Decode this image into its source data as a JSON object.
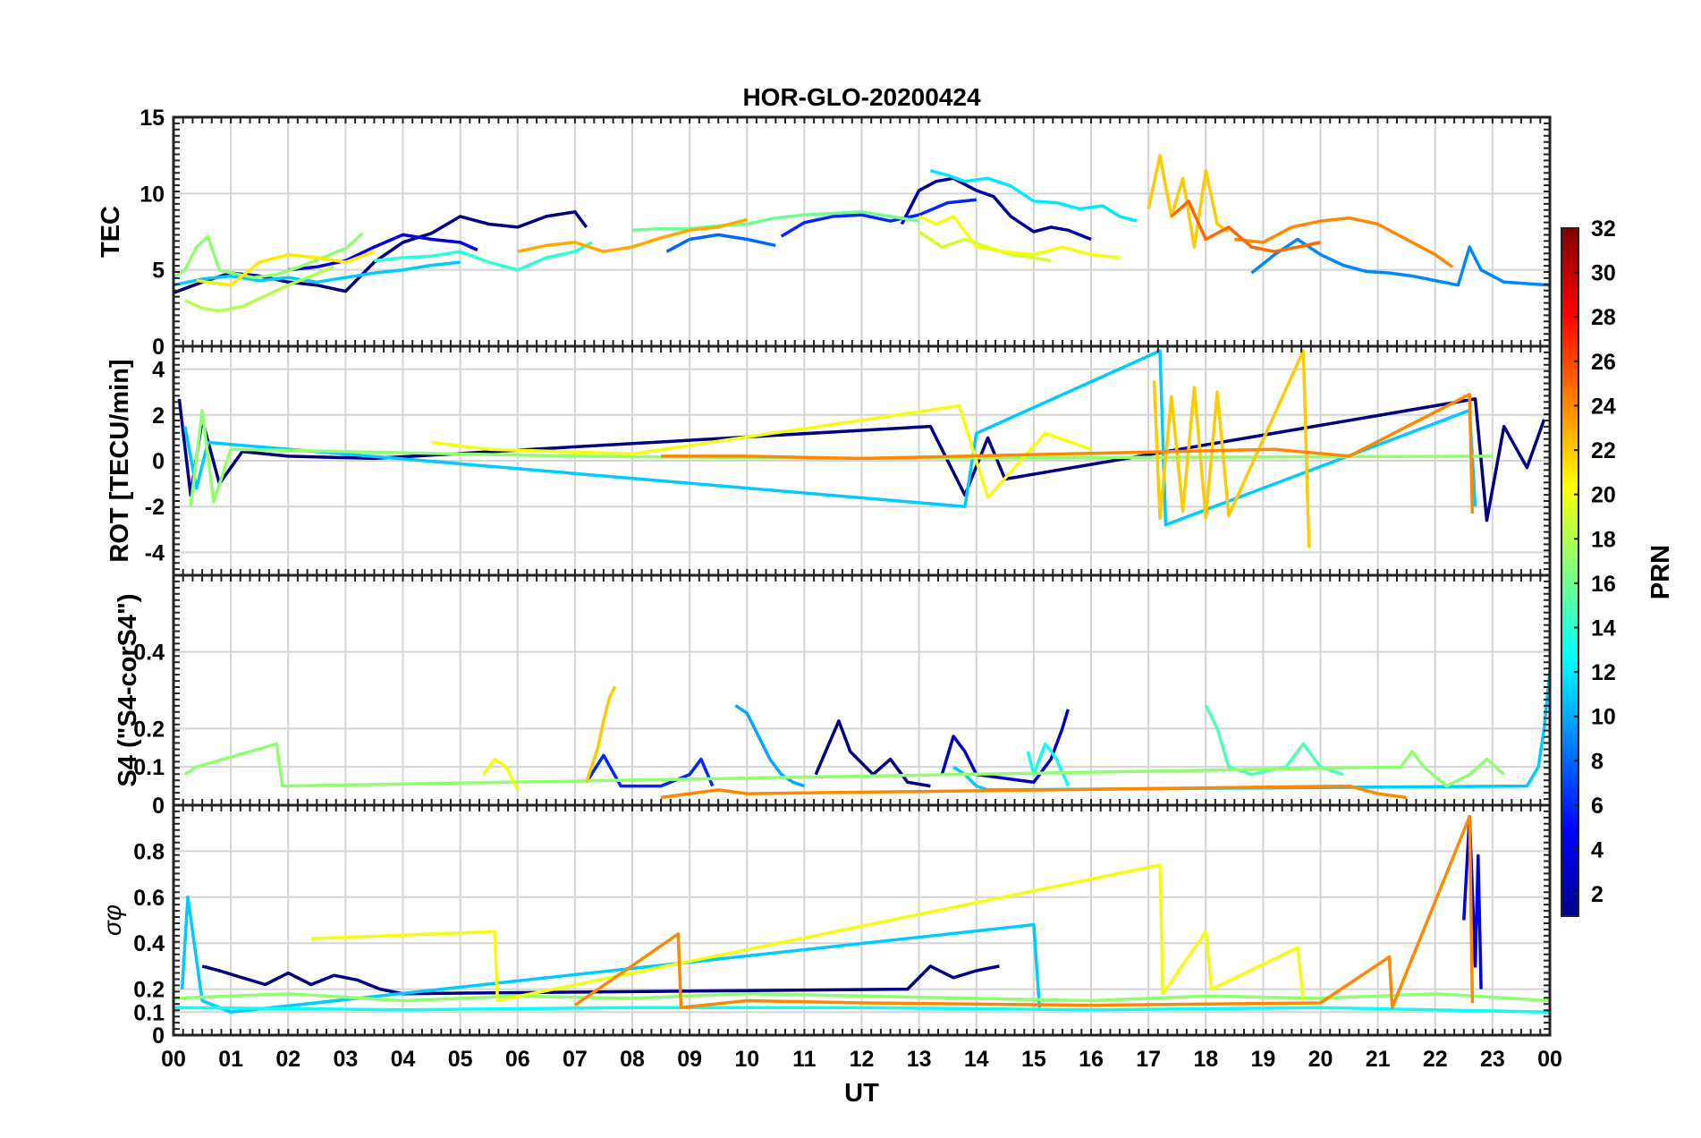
{
  "figure": {
    "title": "HOR-GLO-20200424",
    "xlabel": "UT",
    "x_ticks": [
      "00",
      "01",
      "02",
      "03",
      "04",
      "05",
      "06",
      "07",
      "08",
      "09",
      "10",
      "11",
      "12",
      "13",
      "14",
      "15",
      "16",
      "17",
      "18",
      "19",
      "20",
      "21",
      "22",
      "23",
      "00"
    ]
  },
  "colorbar": {
    "label": "PRN",
    "ticks": [
      "2",
      "4",
      "6",
      "8",
      "10",
      "12",
      "14",
      "16",
      "18",
      "20",
      "22",
      "24",
      "26",
      "28",
      "30",
      "32"
    ],
    "range": [
      1,
      32
    ],
    "colormap": "jet"
  },
  "chart_data": [
    {
      "type": "line",
      "panel": "TEC",
      "ylabel": "TEC",
      "ylim": [
        0,
        15
      ],
      "y_ticks": [
        "0",
        "5",
        "10",
        "15"
      ],
      "x_unit": "UT hours",
      "xlim": [
        0,
        24
      ],
      "grid": true,
      "series": [
        {
          "prn": 1,
          "x": [
            0,
            0.5,
            1,
            1.5,
            2,
            2.5,
            3,
            3.5,
            4,
            4.5,
            5,
            5.5,
            6,
            6.5,
            7,
            7.2
          ],
          "y": [
            3.5,
            4.2,
            4.8,
            4.6,
            4.2,
            4.0,
            3.6,
            5.5,
            6.8,
            7.4,
            8.5,
            8.0,
            7.8,
            8.5,
            8.8,
            7.8
          ]
        },
        {
          "prn": 2,
          "x": [
            12.7,
            13,
            13.3,
            13.6,
            14,
            14.3,
            14.6,
            15,
            15.3,
            15.6,
            16
          ],
          "y": [
            8.0,
            10.2,
            10.8,
            11.0,
            10.2,
            9.8,
            8.5,
            7.5,
            7.8,
            7.6,
            7.0
          ]
        },
        {
          "prn": 4,
          "x": [
            2,
            2.5,
            3,
            3.5,
            4,
            4.5,
            5,
            5.3
          ],
          "y": [
            5.0,
            5.2,
            5.6,
            6.5,
            7.3,
            7.0,
            6.8,
            6.3
          ]
        },
        {
          "prn": 6,
          "x": [
            10.6,
            11,
            11.5,
            12,
            12.5,
            13,
            13.5,
            14
          ],
          "y": [
            7.2,
            8.1,
            8.5,
            8.6,
            8.2,
            8.6,
            9.4,
            9.6
          ]
        },
        {
          "prn": 8,
          "x": [
            8.6,
            9,
            9.5,
            10,
            10.5
          ],
          "y": [
            6.2,
            7.0,
            7.3,
            7.0,
            6.6
          ]
        },
        {
          "prn": 9,
          "x": [
            18.8,
            19.2,
            19.6,
            20,
            20.4,
            20.8,
            21.2,
            21.6,
            22,
            22.4,
            22.6,
            22.8,
            23.2,
            23.6,
            24
          ],
          "y": [
            4.8,
            6.0,
            7.0,
            6.0,
            5.3,
            4.9,
            4.8,
            4.6,
            4.3,
            4.0,
            6.5,
            5.0,
            4.2,
            4.1,
            4.0
          ]
        },
        {
          "prn": 11,
          "x": [
            0,
            0.5,
            1,
            1.5,
            2,
            2.5,
            3,
            3.5,
            4,
            4.5,
            5
          ],
          "y": [
            4.0,
            4.4,
            4.6,
            4.3,
            4.5,
            4.2,
            4.5,
            4.8,
            5.0,
            5.3,
            5.5
          ]
        },
        {
          "prn": 12,
          "x": [
            13.2,
            13.5,
            13.8,
            14.2,
            14.6,
            15,
            15.4,
            15.8,
            16.2,
            16.5,
            16.8
          ],
          "y": [
            11.5,
            11.2,
            10.8,
            11.0,
            10.5,
            9.5,
            9.4,
            9.0,
            9.2,
            8.5,
            8.2
          ]
        },
        {
          "prn": 14,
          "x": [
            3.5,
            4,
            4.5,
            5,
            5.5,
            6,
            6.5,
            7,
            7.3
          ],
          "y": [
            5.6,
            5.8,
            5.9,
            6.2,
            5.5,
            5.0,
            5.8,
            6.2,
            6.8
          ]
        },
        {
          "prn": 16,
          "x": [
            8,
            8.5,
            9,
            9.5,
            10,
            10.5,
            11,
            11.5,
            12,
            12.5,
            13
          ],
          "y": [
            7.6,
            7.7,
            7.7,
            7.9,
            8.0,
            8.4,
            8.6,
            8.7,
            8.8,
            8.5,
            8.2
          ]
        },
        {
          "prn": 17,
          "x": [
            0,
            0.2,
            0.4,
            0.6,
            0.8,
            1,
            1.4,
            1.8,
            2.2,
            2.6,
            3,
            3.3
          ],
          "y": [
            4.5,
            5.0,
            6.5,
            7.2,
            5.0,
            4.8,
            4.5,
            4.7,
            5.2,
            5.8,
            6.4,
            7.4
          ]
        },
        {
          "prn": 18,
          "x": [
            0.2,
            0.5,
            0.8,
            1.2,
            1.6,
            2,
            2.4,
            2.8
          ],
          "y": [
            3.0,
            2.5,
            2.3,
            2.6,
            3.3,
            4.0,
            4.6,
            5.2
          ]
        },
        {
          "prn": 19,
          "x": [
            13,
            13.4,
            13.8,
            14.2,
            14.6,
            15,
            15.3
          ],
          "y": [
            7.5,
            6.5,
            7.0,
            6.5,
            6.0,
            5.8,
            5.6
          ]
        },
        {
          "prn": 20,
          "x": [
            13,
            13.3,
            13.6,
            14,
            14.5,
            15,
            15.5,
            16,
            16.5
          ],
          "y": [
            8.5,
            8.0,
            8.5,
            6.5,
            6.2,
            6.0,
            6.5,
            6.0,
            5.8
          ]
        },
        {
          "prn": 21,
          "x": [
            0.4,
            1,
            1.5,
            2,
            2.5,
            3,
            3.5
          ],
          "y": [
            4.3,
            4.0,
            5.5,
            6.0,
            5.8,
            5.5,
            6.2
          ]
        },
        {
          "prn": 22,
          "x": [
            17,
            17.2,
            17.4,
            17.6,
            17.8,
            18,
            18.2,
            18.4
          ],
          "y": [
            9.0,
            12.5,
            8.5,
            11.0,
            6.5,
            11.5,
            8.0,
            7.5
          ]
        },
        {
          "prn": 23,
          "x": [
            6,
            6.5,
            7,
            7.5,
            8,
            8.5,
            9,
            9.5,
            10
          ],
          "y": [
            6.2,
            6.6,
            6.8,
            6.2,
            6.5,
            7.1,
            7.6,
            7.8,
            8.3
          ]
        },
        {
          "prn": 24,
          "x": [
            18.5,
            19,
            19.5,
            20,
            20.5,
            21,
            21.5,
            22,
            22.3
          ],
          "y": [
            7.0,
            6.8,
            7.8,
            8.2,
            8.4,
            8.0,
            7.0,
            6.0,
            5.2
          ]
        },
        {
          "prn": 25,
          "x": [
            17.4,
            17.7,
            18,
            18.4,
            18.8,
            19.2,
            19.6,
            20
          ],
          "y": [
            8.5,
            9.5,
            7.0,
            7.8,
            6.5,
            6.2,
            6.5,
            6.8
          ]
        }
      ]
    },
    {
      "type": "line",
      "panel": "ROT",
      "ylabel": "ROT [TECU/min]",
      "ylim": [
        -5,
        5
      ],
      "y_ticks": [
        "-4",
        "-2",
        "0",
        "2",
        "4"
      ],
      "x_unit": "UT hours",
      "xlim": [
        0,
        24
      ],
      "grid": true,
      "series": [
        {
          "prn": 1,
          "x": [
            0.1,
            0.3,
            0.5,
            0.8,
            1.2,
            2.0,
            3.5,
            13.2,
            13.8,
            14.2,
            14.5,
            22.7,
            22.9,
            23.2,
            23.6,
            23.9
          ],
          "y": [
            2.7,
            -1.5,
            1.8,
            -1.0,
            0.4,
            0.2,
            0.1,
            1.5,
            -1.5,
            1.0,
            -0.8,
            2.7,
            -2.6,
            1.5,
            -0.3,
            1.8
          ]
        },
        {
          "prn": 11,
          "x": [
            0.2,
            0.4,
            0.6,
            13.8,
            14.0,
            17.2,
            17.3,
            22.6,
            22.7
          ],
          "y": [
            1.5,
            -1.2,
            0.8,
            -2.0,
            1.2,
            4.8,
            -2.8,
            2.2,
            -2.0
          ]
        },
        {
          "prn": 17,
          "x": [
            0.3,
            0.5,
            0.7,
            1.0,
            7.0,
            11.5,
            23.0
          ],
          "y": [
            -2.0,
            2.2,
            -1.8,
            0.5,
            0.2,
            0.1,
            0.2
          ]
        },
        {
          "prn": 20,
          "x": [
            4.5,
            5.5,
            8.0,
            13.7,
            14.2,
            15.2,
            16.0
          ],
          "y": [
            0.8,
            0.5,
            0.3,
            2.4,
            -1.6,
            1.2,
            0.5
          ]
        },
        {
          "prn": 22,
          "x": [
            17.1,
            17.2,
            17.4,
            17.6,
            17.8,
            18.0,
            18.2,
            18.4,
            19.7,
            19.8
          ],
          "y": [
            3.5,
            -2.5,
            2.8,
            -2.2,
            3.2,
            -2.5,
            3.0,
            -2.4,
            4.8,
            -3.8
          ]
        },
        {
          "prn": 24,
          "x": [
            8.5,
            10,
            12,
            19.2,
            20.5,
            22.6,
            22.65
          ],
          "y": [
            0.2,
            0.2,
            0.1,
            0.5,
            0.2,
            2.9,
            -2.3
          ]
        }
      ]
    },
    {
      "type": "line",
      "panel": "S4",
      "ylabel": "S4 (\"S4-corS4\")",
      "ylim": [
        0,
        0.6
      ],
      "y_ticks": [
        "0",
        "0.1",
        "0.2",
        "0.4"
      ],
      "x_unit": "UT hours",
      "xlim": [
        0,
        24
      ],
      "grid": true,
      "series": [
        {
          "prn": 1,
          "x": [
            11.2,
            11.4,
            11.6,
            11.8,
            12.2,
            12.5,
            12.8,
            13.2
          ],
          "y": [
            0.08,
            0.15,
            0.22,
            0.14,
            0.08,
            0.12,
            0.06,
            0.05
          ]
        },
        {
          "prn": 3,
          "x": [
            13.4,
            13.6,
            13.8,
            14.0,
            15.0,
            15.3,
            15.5,
            15.6
          ],
          "y": [
            0.08,
            0.18,
            0.14,
            0.08,
            0.06,
            0.12,
            0.2,
            0.25
          ]
        },
        {
          "prn": 6,
          "x": [
            7.2,
            7.5,
            7.8,
            8.5,
            9.0,
            9.2,
            9.4
          ],
          "y": [
            0.06,
            0.13,
            0.05,
            0.05,
            0.08,
            0.12,
            0.05
          ]
        },
        {
          "prn": 10,
          "x": [
            9.8,
            10.0,
            10.2,
            10.4,
            10.6,
            10.8,
            11.0
          ],
          "y": [
            0.26,
            0.24,
            0.18,
            0.12,
            0.08,
            0.06,
            0.05
          ]
        },
        {
          "prn": 11,
          "x": [
            13.6,
            13.8,
            14.0,
            14.2,
            23.6,
            23.8,
            23.9,
            24.0
          ],
          "y": [
            0.1,
            0.08,
            0.05,
            0.04,
            0.05,
            0.1,
            0.2,
            0.35
          ]
        },
        {
          "prn": 13,
          "x": [
            14.9,
            15.0,
            15.2,
            15.4,
            15.6
          ],
          "y": [
            0.14,
            0.08,
            0.16,
            0.12,
            0.05
          ]
        },
        {
          "prn": 15,
          "x": [
            18.0,
            18.2,
            18.4,
            18.8,
            19.4,
            19.7,
            20.0,
            20.4
          ],
          "y": [
            0.26,
            0.2,
            0.1,
            0.08,
            0.1,
            0.16,
            0.1,
            0.08
          ]
        },
        {
          "prn": 17,
          "x": [
            0.2,
            0.4,
            1.8,
            1.9,
            21.4,
            21.6,
            21.8,
            22.2,
            22.6,
            22.9,
            23.2
          ],
          "y": [
            0.08,
            0.1,
            0.16,
            0.05,
            0.1,
            0.14,
            0.1,
            0.05,
            0.08,
            0.12,
            0.08
          ]
        },
        {
          "prn": 20,
          "x": [
            5.4,
            5.6,
            5.8,
            6.0
          ],
          "y": [
            0.08,
            0.12,
            0.1,
            0.04
          ]
        },
        {
          "prn": 22,
          "x": [
            7.2,
            7.4,
            7.5,
            7.6,
            7.7
          ],
          "y": [
            0.06,
            0.15,
            0.22,
            0.28,
            0.31
          ]
        },
        {
          "prn": 24,
          "x": [
            8.5,
            9.0,
            9.5,
            10.0,
            20.5,
            21.0,
            21.5
          ],
          "y": [
            0.02,
            0.03,
            0.04,
            0.03,
            0.05,
            0.03,
            0.02
          ]
        }
      ]
    },
    {
      "type": "line",
      "panel": "sigma_phi",
      "ylabel": "σφ",
      "ylim": [
        0,
        1
      ],
      "y_ticks": [
        "0",
        "0.1",
        "0.2",
        "0.4",
        "0.6",
        "0.8"
      ],
      "x_unit": "UT hours",
      "xlim": [
        0,
        24
      ],
      "grid": true,
      "series": [
        {
          "prn": 1,
          "x": [
            0.5,
            0.8,
            1.2,
            1.6,
            2.0,
            2.4,
            2.8,
            3.2,
            3.6,
            4.0,
            12.8,
            13.2,
            13.6,
            14.0,
            14.4
          ],
          "y": [
            0.3,
            0.28,
            0.25,
            0.22,
            0.27,
            0.22,
            0.26,
            0.24,
            0.2,
            0.18,
            0.2,
            0.3,
            0.25,
            0.28,
            0.3
          ]
        },
        {
          "prn": 4,
          "x": [
            22.5,
            22.6,
            22.7,
            22.75,
            22.8
          ],
          "y": [
            0.5,
            0.95,
            0.3,
            0.78,
            0.2
          ]
        },
        {
          "prn": 11,
          "x": [
            0.15,
            0.25,
            0.5,
            1.0,
            15.0,
            15.1
          ],
          "y": [
            0.2,
            0.6,
            0.15,
            0.1,
            0.48,
            0.12
          ]
        },
        {
          "prn": 13,
          "x": [
            0,
            4,
            8,
            12,
            16,
            20,
            24
          ],
          "y": [
            0.12,
            0.11,
            0.12,
            0.12,
            0.11,
            0.12,
            0.1
          ]
        },
        {
          "prn": 17,
          "x": [
            0,
            2,
            4,
            6,
            8,
            10,
            12,
            14,
            16,
            18,
            20,
            22,
            24
          ],
          "y": [
            0.16,
            0.18,
            0.15,
            0.17,
            0.16,
            0.18,
            0.17,
            0.16,
            0.15,
            0.17,
            0.16,
            0.18,
            0.15
          ]
        },
        {
          "prn": 20,
          "x": [
            2.4,
            5.6,
            5.65,
            17.2,
            17.25,
            18.0,
            18.1,
            19.6,
            19.7
          ],
          "y": [
            0.42,
            0.45,
            0.15,
            0.74,
            0.18,
            0.45,
            0.2,
            0.38,
            0.15
          ]
        },
        {
          "prn": 24,
          "x": [
            7,
            8.8,
            8.85,
            10,
            12,
            16,
            20,
            21.2,
            21.25,
            22.6,
            22.65
          ],
          "y": [
            0.13,
            0.44,
            0.12,
            0.15,
            0.14,
            0.13,
            0.14,
            0.34,
            0.12,
            0.95,
            0.14
          ]
        }
      ]
    }
  ]
}
